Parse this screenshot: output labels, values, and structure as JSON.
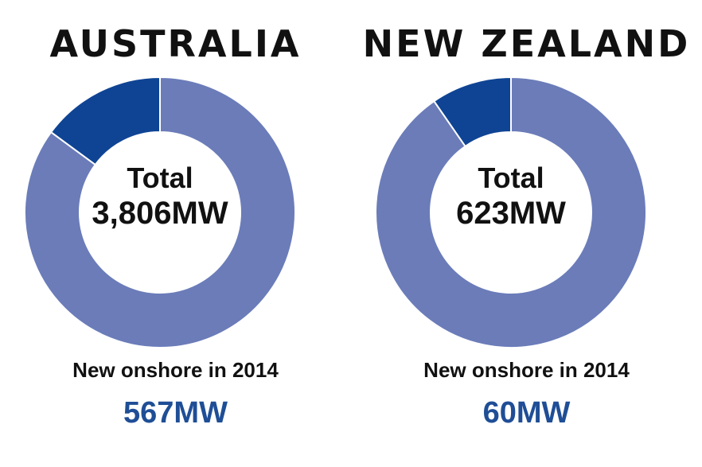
{
  "chart_data": [
    {
      "type": "pie",
      "title": "AUSTRALIA",
      "center_label_line1": "Total",
      "center_label_line2": "3,806MW",
      "total": 3806,
      "new_onshore_2014": 567,
      "caption": "New onshore in 2014",
      "caption_value": "567MW",
      "slices": [
        {
          "value": 567,
          "color": "#0f4494"
        },
        {
          "value": 3239,
          "color": "#6b7cb9"
        }
      ]
    },
    {
      "type": "pie",
      "title": "NEW ZEALAND",
      "center_label_line1": "Total",
      "center_label_line2": "623MW",
      "total": 623,
      "new_onshore_2014": 60,
      "caption": "New onshore in 2014",
      "caption_value": "60MW",
      "slices": [
        {
          "value": 60,
          "color": "#0f4494"
        },
        {
          "value": 563,
          "color": "#6b7cb9"
        }
      ]
    }
  ]
}
